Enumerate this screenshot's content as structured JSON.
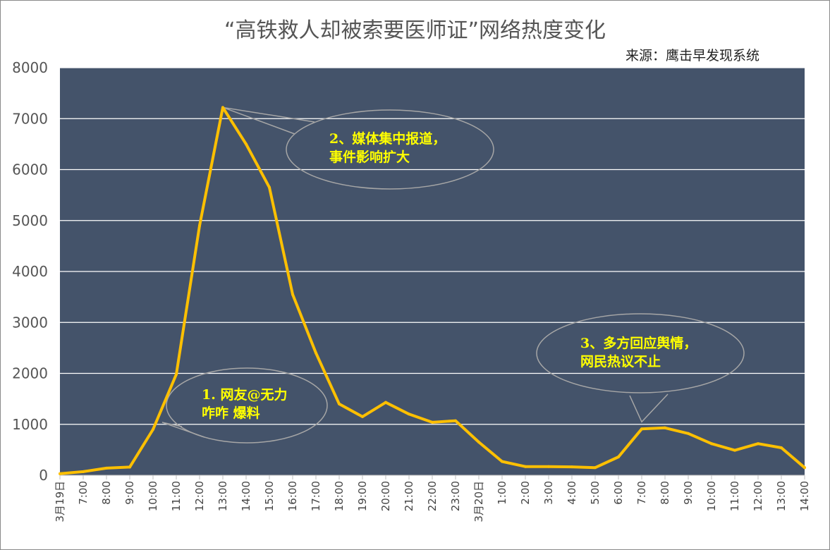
{
  "chart_data": {
    "type": "line",
    "title": "“高铁救人却被索要医师证”网络热度变化",
    "source": "来源：鹰击早发现系统",
    "ylim": [
      0,
      8000
    ],
    "yticks": [
      0,
      1000,
      2000,
      3000,
      4000,
      5000,
      6000,
      7000,
      8000
    ],
    "grid": true,
    "colors": {
      "plot_bg": "#44536a",
      "line": "#ffc000",
      "grid": "#ffffff",
      "annotation_text": "#ffff00",
      "callout": "#a6a6a6"
    },
    "categories": [
      "3月19日",
      "7:00",
      "8:00",
      "9:00",
      "10:00",
      "11:00",
      "12:00",
      "13:00",
      "14:00",
      "15:00",
      "16:00",
      "17:00",
      "18:00",
      "19:00",
      "20:00",
      "21:00",
      "22:00",
      "23:00",
      "3月20日",
      "1:00",
      "2:00",
      "3:00",
      "4:00",
      "5:00",
      "6:00",
      "7:00",
      "8:00",
      "9:00",
      "10:00",
      "11:00",
      "12:00",
      "13:00",
      "14:00"
    ],
    "series": [
      {
        "values": [
          30,
          70,
          140,
          160,
          900,
          1980,
          4900,
          7220,
          6500,
          5650,
          3550,
          2400,
          1400,
          1150,
          1430,
          1200,
          1040,
          1070,
          650,
          270,
          170,
          170,
          165,
          150,
          360,
          910,
          930,
          820,
          620,
          490,
          620,
          540,
          150
        ]
      }
    ],
    "annotations": [
      {
        "lines": [
          "1. 网友@无力",
          "咋咋  爆料"
        ],
        "target_index": 4
      },
      {
        "lines": [
          "2、媒体集中报道，",
          "事件影响扩大"
        ],
        "target_index": 7
      },
      {
        "lines": [
          "3、多方回应舆情，",
          "网民热议不止"
        ],
        "target_index": 25
      }
    ]
  }
}
